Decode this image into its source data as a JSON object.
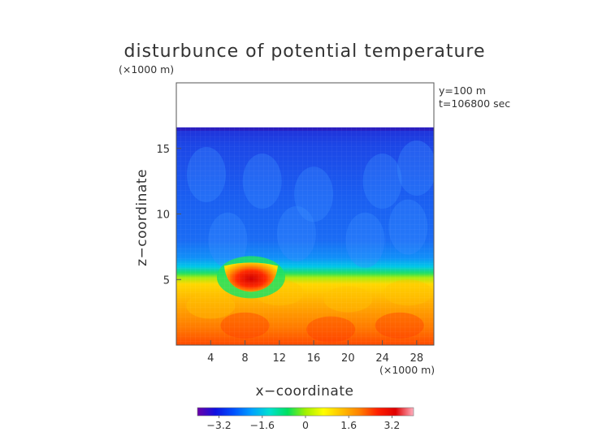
{
  "chart_data": {
    "type": "heatmap",
    "title": "disturbunce of potential temperature",
    "unit_label": "(×1000 m)",
    "annotations": [
      "y=100 m",
      "t=106800 sec"
    ],
    "xlabel": "x−coordinate",
    "ylabel": "z−coordinate",
    "x_unit_label": "(×1000 m)",
    "xlim": [
      0,
      30
    ],
    "ylim": [
      0,
      20
    ],
    "x_ticks": [
      {
        "value": 4,
        "label": "4"
      },
      {
        "value": 8,
        "label": "8"
      },
      {
        "value": 12,
        "label": "12"
      },
      {
        "value": 16,
        "label": "16"
      },
      {
        "value": 20,
        "label": "20"
      },
      {
        "value": 24,
        "label": "24"
      },
      {
        "value": 28,
        "label": "28"
      }
    ],
    "y_ticks": [
      {
        "value": 5,
        "label": "5"
      },
      {
        "value": 10,
        "label": "10"
      },
      {
        "value": 15,
        "label": "15"
      }
    ],
    "colorbar": {
      "range": [
        -4,
        4
      ],
      "ticks": [
        {
          "value": -3.2,
          "label": "−3.2"
        },
        {
          "value": -1.6,
          "label": "−1.6"
        },
        {
          "value": 0,
          "label": "0"
        },
        {
          "value": 1.6,
          "label": "1.6"
        },
        {
          "value": 3.2,
          "label": "3.2"
        }
      ],
      "colors": [
        "#6a00a8",
        "#1010e0",
        "#0050ff",
        "#00a0ff",
        "#00e0d0",
        "#00e060",
        "#a0f000",
        "#ffff00",
        "#ffc000",
        "#ff8000",
        "#ff2000",
        "#e00000",
        "#ffb0c0"
      ]
    },
    "field_top_z": 16.6,
    "features": [
      {
        "kind": "cold anomaly band",
        "z_range": [
          5.5,
          16.6
        ],
        "value_range": [
          -2.8,
          -1.4
        ]
      },
      {
        "kind": "warm layer",
        "z_range": [
          0,
          5.2
        ],
        "value_range": [
          1.4,
          3.0
        ]
      },
      {
        "kind": "warm bubble",
        "x": 8.7,
        "z": 5.3,
        "value": 3.6
      }
    ]
  }
}
